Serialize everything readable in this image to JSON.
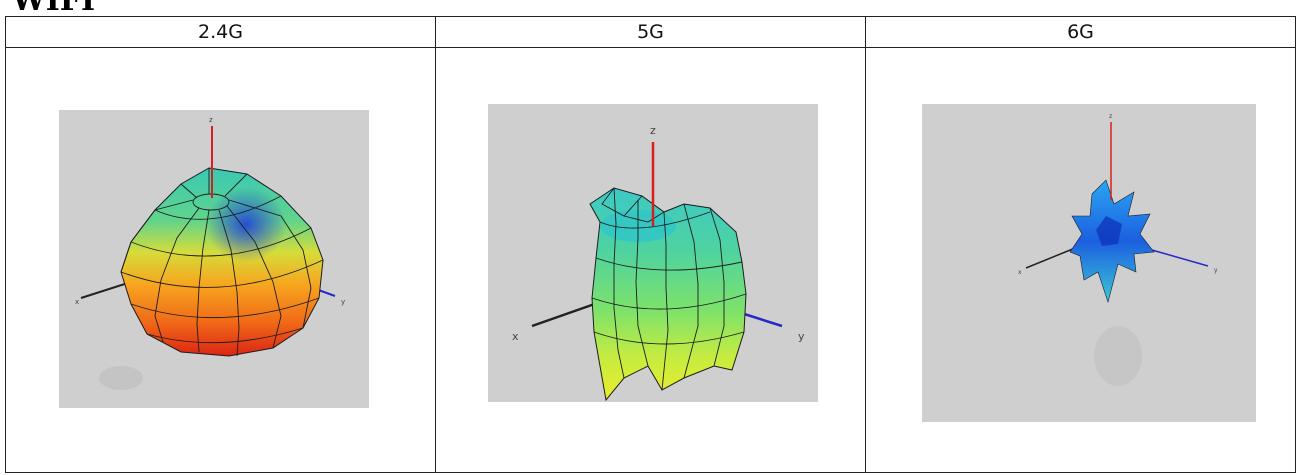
{
  "heading": "WIFI",
  "table": {
    "columns": [
      {
        "label": "2.4G"
      },
      {
        "label": "5G"
      },
      {
        "label": "6G"
      }
    ]
  },
  "plots": [
    {
      "axis_labels": {
        "x": "x",
        "y": "y",
        "z": "z"
      }
    },
    {
      "axis_labels": {
        "x": "x",
        "y": "y",
        "z": "z"
      }
    },
    {
      "axis_labels": {
        "x": "x",
        "y": "y",
        "z": "z"
      }
    }
  ],
  "colors": {
    "background": "#ffffff",
    "plot_background": "#cfcfcf",
    "z_axis": "#d62020",
    "y_axis": "#2828c8",
    "x_axis": "#222222"
  }
}
